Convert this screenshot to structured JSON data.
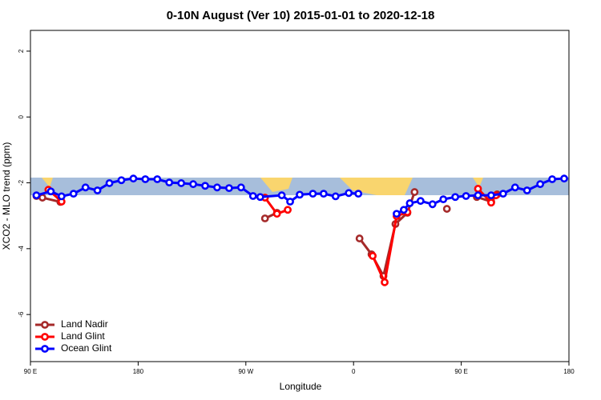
{
  "chart_data": {
    "type": "line",
    "title": "0-10N August (Ver 10)   2015-01-01 to 2020-12-18",
    "x_label": "Longitude",
    "y_label": "XCO2 - MLO trend (ppm)",
    "xlim": [
      90,
      540
    ],
    "ylim": [
      -7.43,
      2.63
    ],
    "xticks": [
      {
        "value": 90,
        "label": "90 E"
      },
      180,
      {
        "value": 270,
        "label": "90 W"
      },
      {
        "value": 360,
        "label": "0"
      },
      {
        "value": 450,
        "label": "90 E"
      },
      {
        "value": 540,
        "label": "180"
      }
    ],
    "yticks": [
      -6,
      -4,
      -2,
      0,
      2
    ],
    "legend": "bottom-left",
    "series": [
      {
        "name": "Land Nadir",
        "color": "#a52a2a",
        "x": [
          95,
          100,
          115,
          null,
          286,
          296,
          null,
          365,
          375,
          385,
          395,
          405,
          411,
          null,
          438,
          null,
          463,
          475,
          480
        ],
        "values": [
          -2.4,
          -2.45,
          -2.58,
          null,
          -3.08,
          -2.91,
          null,
          -3.69,
          -4.17,
          -4.83,
          -3.25,
          -2.91,
          -2.28,
          null,
          -2.79,
          null,
          -2.43,
          -2.57,
          -2.35
        ]
      },
      {
        "name": "Land Glint",
        "color": "#ff0000",
        "x": [
          105,
          116,
          null,
          286,
          296,
          305,
          null,
          376,
          386,
          396,
          405,
          null,
          464,
          475,
          479
        ],
        "values": [
          -2.21,
          -2.57,
          null,
          -2.45,
          -2.94,
          -2.82,
          null,
          -4.22,
          -5.02,
          -3.01,
          -2.89,
          null,
          -2.18,
          -2.6,
          -2.38
        ]
      },
      {
        "name": "Ocean Glint",
        "color": "#0000ff",
        "x": [
          95,
          107,
          116,
          126,
          136,
          146,
          156,
          166,
          176,
          186,
          196,
          206,
          216,
          226,
          236,
          246,
          256,
          266,
          276,
          282,
          300,
          307,
          315,
          326,
          335,
          345,
          356,
          364,
          null,
          396,
          402,
          407,
          416,
          426,
          435,
          445,
          454,
          464,
          475,
          485,
          495,
          505,
          516,
          526,
          536
        ],
        "values": [
          -2.38,
          -2.26,
          -2.41,
          -2.33,
          -2.14,
          -2.23,
          -2.01,
          -1.92,
          -1.87,
          -1.89,
          -1.89,
          -1.99,
          -2.01,
          -2.04,
          -2.09,
          -2.14,
          -2.16,
          -2.14,
          -2.4,
          -2.43,
          -2.38,
          -2.57,
          -2.36,
          -2.33,
          -2.33,
          -2.41,
          -2.31,
          -2.33,
          null,
          -2.94,
          -2.82,
          -2.62,
          -2.55,
          -2.65,
          -2.5,
          -2.43,
          -2.4,
          -2.38,
          -2.38,
          -2.33,
          -2.14,
          -2.23,
          -2.04,
          -1.89,
          -1.87
        ]
      }
    ]
  }
}
